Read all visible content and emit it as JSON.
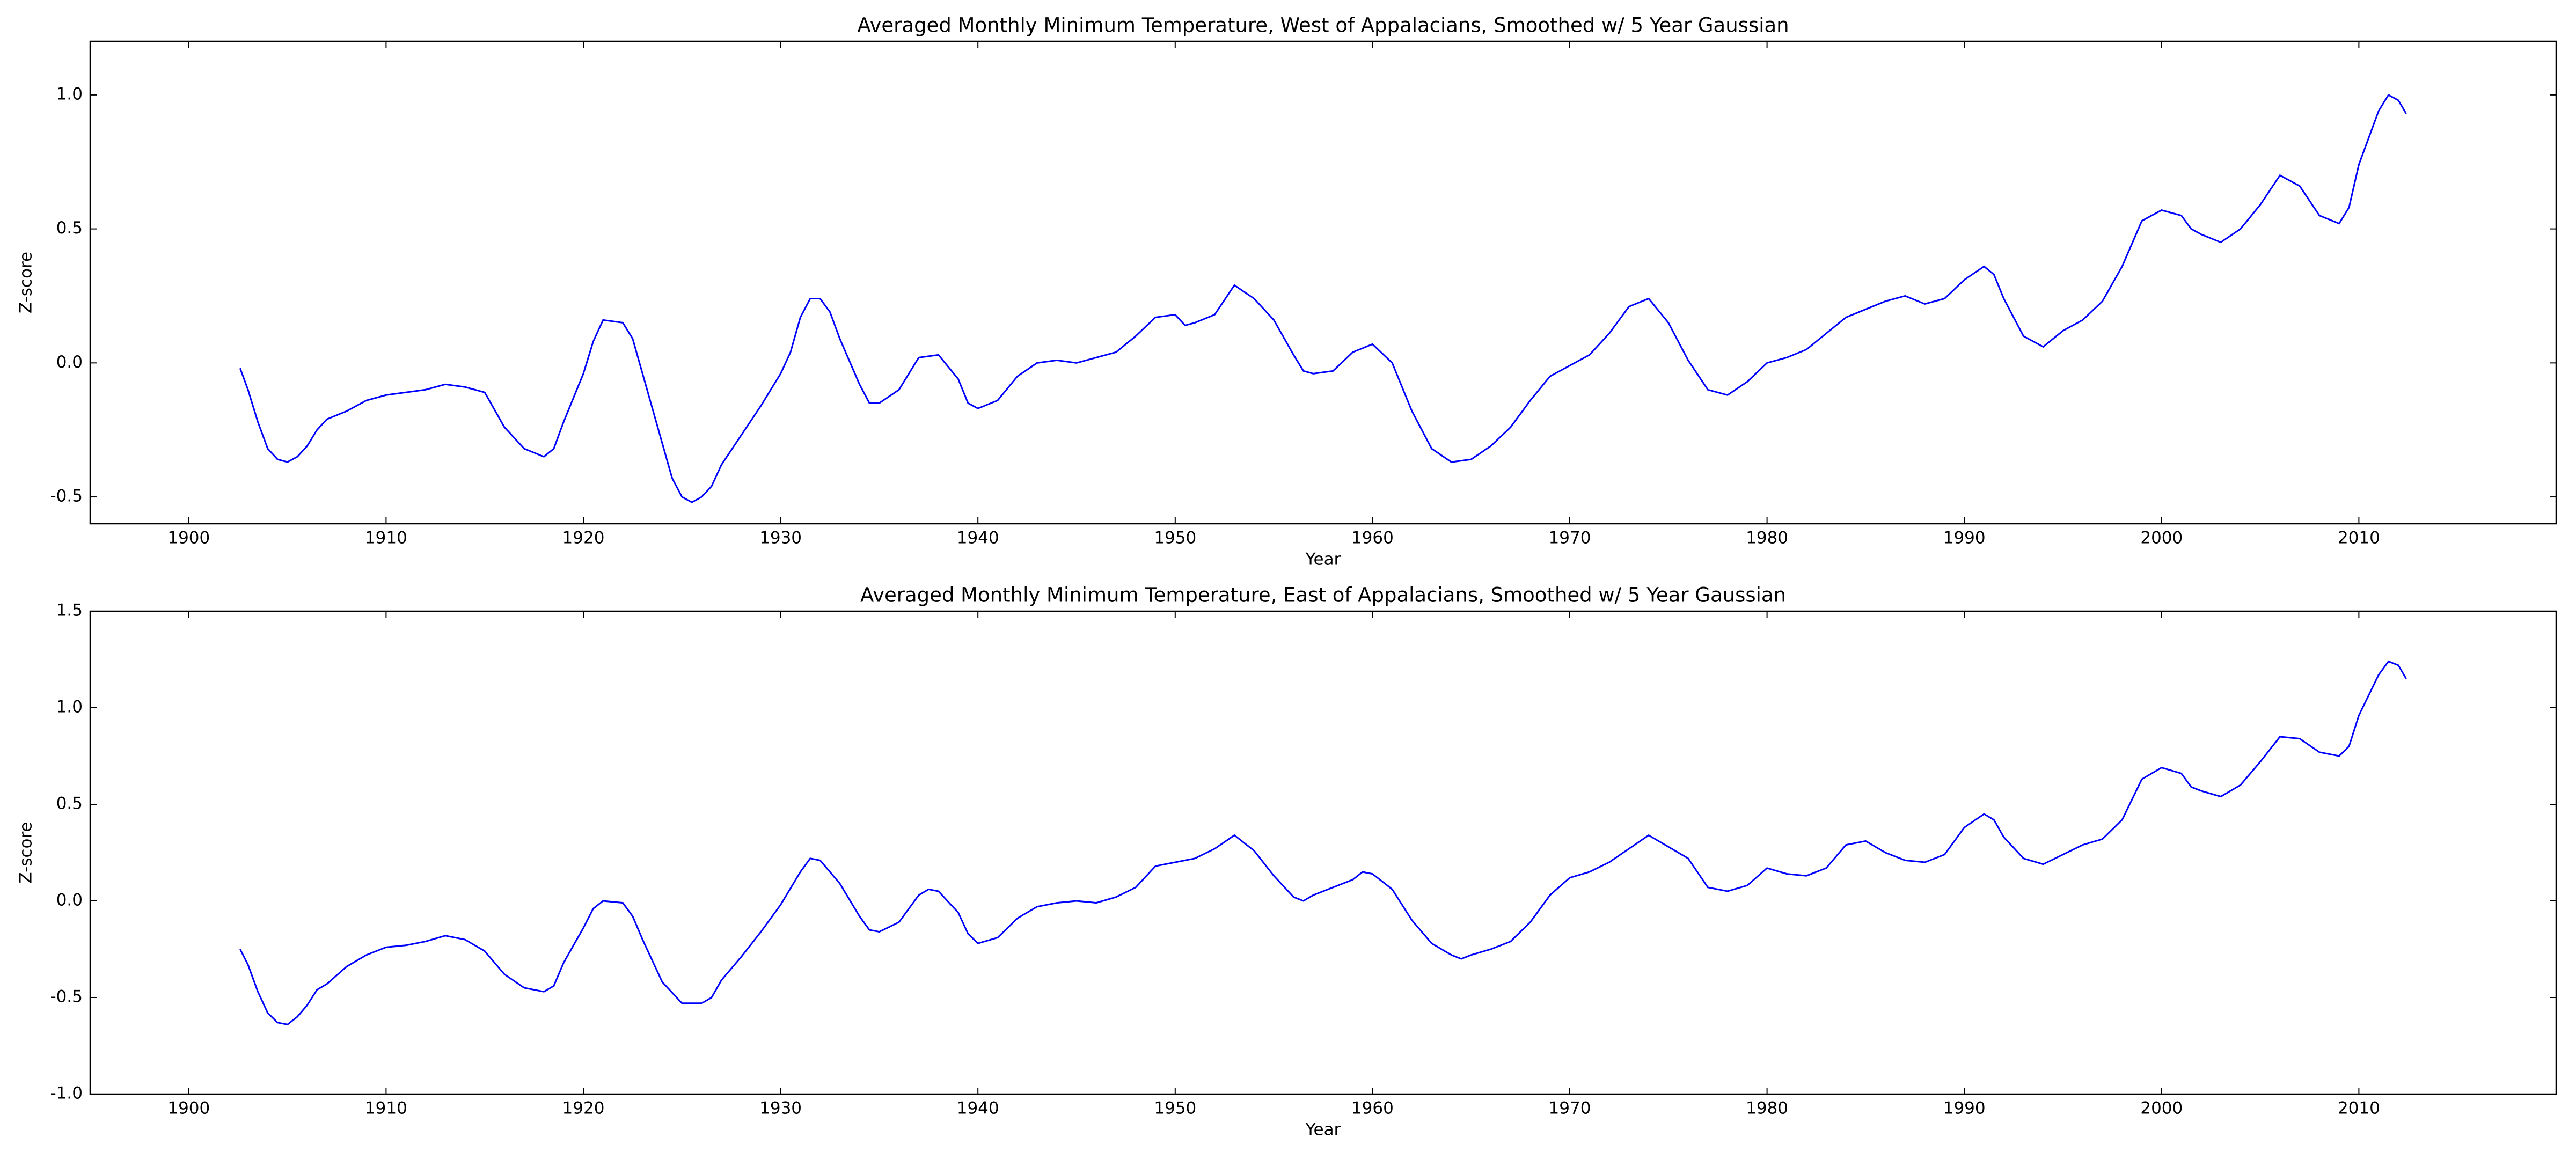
{
  "chart_data": [
    {
      "type": "line",
      "title": "Averaged Monthly Minimum Temperature, West of Appalacians, Smoothed w/ 5 Year Gaussian",
      "xlabel": "Year",
      "ylabel": "Z-score",
      "color": "#0000ff",
      "xlim": [
        1895,
        2020
      ],
      "xticks": [
        1900,
        1910,
        1920,
        1930,
        1940,
        1950,
        1960,
        1970,
        1980,
        1990,
        2000,
        2010
      ],
      "ylim": [
        -0.6,
        1.2
      ],
      "yticks": [
        -0.5,
        {
          "value": 0,
          "label": "0.0"
        },
        0.5,
        {
          "value": 1,
          "label": "1.0"
        }
      ],
      "x": [
        1902.6,
        1903,
        1903.5,
        1904,
        1904.5,
        1905,
        1905.5,
        1906,
        1906.5,
        1907,
        1908,
        1909,
        1910,
        1911,
        1912,
        1913,
        1914,
        1915,
        1916,
        1917,
        1918,
        1918.5,
        1919,
        1920,
        1920.5,
        1921,
        1922,
        1922.5,
        1923,
        1924,
        1924.5,
        1925,
        1925.5,
        1926,
        1926.5,
        1927,
        1928,
        1929,
        1930,
        1930.5,
        1931,
        1931.5,
        1932,
        1932.5,
        1933,
        1934,
        1934.5,
        1935,
        1936,
        1937,
        1938,
        1939,
        1939.5,
        1940,
        1941,
        1942,
        1943,
        1944,
        1945,
        1946,
        1947,
        1948,
        1949,
        1950,
        1950.5,
        1951,
        1952,
        1953,
        1954,
        1955,
        1956,
        1956.5,
        1957,
        1958,
        1959,
        1960,
        1961,
        1962,
        1963,
        1964,
        1965,
        1966,
        1967,
        1968,
        1969,
        1970,
        1971,
        1972,
        1973,
        1974,
        1975,
        1976,
        1977,
        1978,
        1979,
        1980,
        1981,
        1982,
        1983,
        1984,
        1985,
        1986,
        1987,
        1988,
        1989,
        1990,
        1991,
        1991.5,
        1992,
        1993,
        1994,
        1995,
        1996,
        1997,
        1998,
        1999,
        2000,
        2001,
        2001.5,
        2002,
        2003,
        2004,
        2005,
        2006,
        2007,
        2008,
        2009,
        2009.5,
        2010,
        2011,
        2011.5,
        2012,
        2012.4
      ],
      "values": [
        -0.02,
        -0.1,
        -0.22,
        -0.32,
        -0.36,
        -0.37,
        -0.35,
        -0.31,
        -0.25,
        -0.21,
        -0.18,
        -0.14,
        -0.12,
        -0.11,
        -0.1,
        -0.08,
        -0.09,
        -0.11,
        -0.24,
        -0.32,
        -0.35,
        -0.32,
        -0.22,
        -0.04,
        0.08,
        0.16,
        0.15,
        0.09,
        -0.04,
        -0.3,
        -0.43,
        -0.5,
        -0.52,
        -0.5,
        -0.46,
        -0.38,
        -0.27,
        -0.16,
        -0.04,
        0.04,
        0.17,
        0.24,
        0.24,
        0.19,
        0.09,
        -0.08,
        -0.15,
        -0.15,
        -0.1,
        0.02,
        0.03,
        -0.06,
        -0.15,
        -0.17,
        -0.14,
        -0.05,
        0.0,
        0.01,
        0.0,
        0.02,
        0.04,
        0.1,
        0.17,
        0.18,
        0.14,
        0.15,
        0.18,
        0.29,
        0.24,
        0.16,
        0.03,
        -0.03,
        -0.04,
        -0.03,
        0.04,
        0.07,
        0.0,
        -0.18,
        -0.32,
        -0.37,
        -0.36,
        -0.31,
        -0.24,
        -0.14,
        -0.05,
        -0.01,
        0.03,
        0.11,
        0.21,
        0.24,
        0.15,
        0.01,
        -0.1,
        -0.12,
        -0.07,
        0.0,
        0.02,
        0.05,
        0.11,
        0.17,
        0.2,
        0.23,
        0.25,
        0.22,
        0.24,
        0.31,
        0.36,
        0.33,
        0.24,
        0.1,
        0.06,
        0.12,
        0.16,
        0.23,
        0.36,
        0.53,
        0.57,
        0.55,
        0.5,
        0.48,
        0.45,
        0.5,
        0.59,
        0.7,
        0.66,
        0.55,
        0.52,
        0.58,
        0.74,
        0.94,
        1.0,
        0.98,
        0.93
      ]
    },
    {
      "type": "line",
      "title": "Averaged Monthly Minimum Temperature, East of Appalacians, Smoothed w/ 5 Year Gaussian",
      "xlabel": "Year",
      "ylabel": "Z-score",
      "color": "#0000ff",
      "xlim": [
        1895,
        2020
      ],
      "xticks": [
        1900,
        1910,
        1920,
        1930,
        1940,
        1950,
        1960,
        1970,
        1980,
        1990,
        2000,
        2010
      ],
      "ylim": [
        -1,
        1.5
      ],
      "yticks": [
        {
          "value": -1,
          "label": "-1.0"
        },
        -0.5,
        {
          "value": 0,
          "label": "0.0"
        },
        0.5,
        {
          "value": 1,
          "label": "1.0"
        },
        1.5
      ],
      "x": [
        1902.6,
        1903,
        1903.5,
        1904,
        1904.5,
        1905,
        1905.5,
        1906,
        1906.5,
        1907,
        1908,
        1909,
        1910,
        1911,
        1912,
        1913,
        1914,
        1915,
        1916,
        1917,
        1918,
        1918.5,
        1919,
        1920,
        1920.5,
        1921,
        1922,
        1922.5,
        1923,
        1924,
        1925,
        1926,
        1926.5,
        1927,
        1928,
        1929,
        1930,
        1931,
        1931.5,
        1932,
        1933,
        1934,
        1934.5,
        1935,
        1936,
        1937,
        1937.5,
        1938,
        1939,
        1939.5,
        1940,
        1941,
        1942,
        1943,
        1944,
        1945,
        1946,
        1947,
        1948,
        1949,
        1950,
        1951,
        1952,
        1953,
        1954,
        1955,
        1956,
        1956.5,
        1957,
        1958,
        1959,
        1959.5,
        1960,
        1961,
        1962,
        1963,
        1964,
        1964.5,
        1965,
        1966,
        1967,
        1968,
        1969,
        1970,
        1971,
        1972,
        1973,
        1974,
        1975,
        1976,
        1977,
        1978,
        1979,
        1980,
        1981,
        1982,
        1983,
        1984,
        1985,
        1986,
        1987,
        1988,
        1989,
        1990,
        1991,
        1991.5,
        1992,
        1993,
        1994,
        1995,
        1996,
        1997,
        1998,
        1999,
        2000,
        2001,
        2001.5,
        2002,
        2003,
        2004,
        2005,
        2006,
        2007,
        2008,
        2009,
        2009.5,
        2010,
        2011,
        2011.5,
        2012,
        2012.4
      ],
      "values": [
        -0.25,
        -0.33,
        -0.47,
        -0.58,
        -0.63,
        -0.64,
        -0.6,
        -0.54,
        -0.46,
        -0.43,
        -0.34,
        -0.28,
        -0.24,
        -0.23,
        -0.21,
        -0.18,
        -0.2,
        -0.26,
        -0.38,
        -0.45,
        -0.47,
        -0.44,
        -0.32,
        -0.14,
        -0.04,
        0.0,
        -0.01,
        -0.08,
        -0.2,
        -0.42,
        -0.53,
        -0.53,
        -0.5,
        -0.41,
        -0.29,
        -0.16,
        -0.02,
        0.15,
        0.22,
        0.21,
        0.09,
        -0.08,
        -0.15,
        -0.16,
        -0.11,
        0.03,
        0.06,
        0.05,
        -0.06,
        -0.17,
        -0.22,
        -0.19,
        -0.09,
        -0.03,
        -0.01,
        0.0,
        -0.01,
        0.02,
        0.07,
        0.18,
        0.2,
        0.22,
        0.27,
        0.34,
        0.26,
        0.13,
        0.02,
        0.0,
        0.03,
        0.07,
        0.11,
        0.15,
        0.14,
        0.06,
        -0.1,
        -0.22,
        -0.28,
        -0.3,
        -0.28,
        -0.25,
        -0.21,
        -0.11,
        0.03,
        0.12,
        0.15,
        0.2,
        0.27,
        0.34,
        0.28,
        0.22,
        0.07,
        0.05,
        0.08,
        0.17,
        0.14,
        0.13,
        0.17,
        0.29,
        0.31,
        0.25,
        0.21,
        0.2,
        0.24,
        0.38,
        0.45,
        0.42,
        0.33,
        0.22,
        0.19,
        0.24,
        0.29,
        0.32,
        0.42,
        0.63,
        0.69,
        0.66,
        0.59,
        0.57,
        0.54,
        0.6,
        0.72,
        0.85,
        0.84,
        0.77,
        0.75,
        0.8,
        0.96,
        1.17,
        1.24,
        1.22,
        1.15
      ]
    }
  ]
}
